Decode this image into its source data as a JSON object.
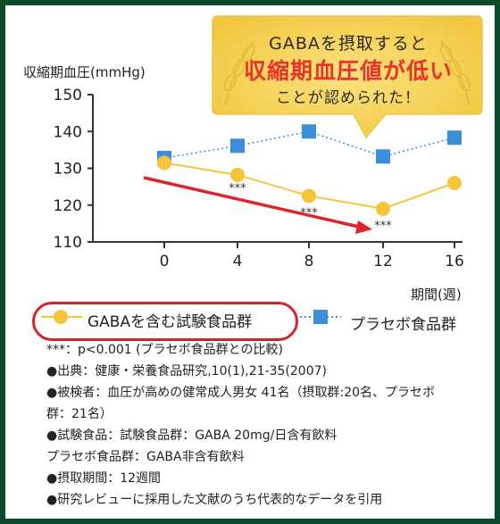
{
  "callout": {
    "line1": "GABAを摂取すると",
    "line2": "収縮期血圧値が低い",
    "line3": "ことが認められた！"
  },
  "chart_data": {
    "type": "line",
    "ylabel": "収縮期血圧(mmHg)",
    "xlabel": "期間(週)",
    "x": [
      0,
      4,
      8,
      12,
      16
    ],
    "x_tick_labels": [
      "0",
      "4",
      "8",
      "12",
      "16"
    ],
    "y_tick_labels": [
      "110",
      "120",
      "130",
      "140",
      "150"
    ],
    "ylim": [
      110,
      150
    ],
    "series": [
      {
        "name": "GABAを含む試験食品群",
        "values": [
          131.5,
          128.2,
          122.5,
          119.0,
          126.0
        ],
        "color": "#f6c63a",
        "marker": "circle"
      },
      {
        "name": "プラセボ食品群",
        "values": [
          132.8,
          136.1,
          140.0,
          133.2,
          138.3
        ],
        "color": "#3a8fd8",
        "marker": "square",
        "line_style": "dotted"
      }
    ],
    "annotations": [
      {
        "text": "***",
        "x": 4,
        "y": 125.5
      },
      {
        "text": "***",
        "x": 8,
        "y": 118.8
      },
      {
        "text": "***",
        "x": 12,
        "y": 115.3
      }
    ],
    "trend_arrow_color": "#e0232a",
    "grid": false
  },
  "legend": {
    "gaba_label": "GABAを含む試験食品群",
    "placebo_label": "プラセボ食品群"
  },
  "notes": [
    "***：p<0.001 (プラセボ食品群との比較)",
    "●出典：健康・栄養食品研究,10(1),21-35(2007)",
    "●被検者：血圧が高めの健常成人男女 41名（摂取群:20名、プラセボ群：21名）",
    "●試験食品：試験食品群：GABA 20mg/日含有飲料",
    "プラセボ食品群：GABA非含有飲料",
    "●摂取期間：12週間",
    "●研究レビューに採用した文献のうち代表的なデータを引用"
  ],
  "colors": {
    "frame": "#0d4a2a",
    "callout_bg": "#f7d460",
    "accent_red": "#e0232a"
  }
}
